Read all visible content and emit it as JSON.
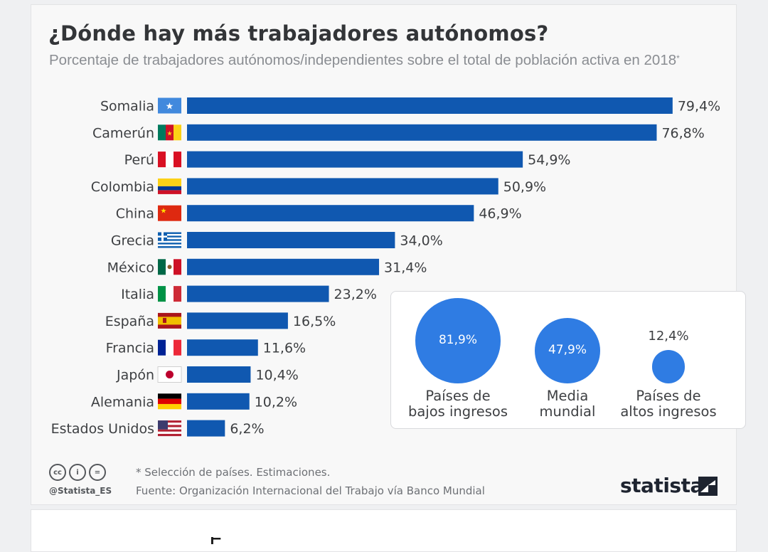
{
  "header": {
    "title": "¿Dónde hay más trabajadores autónomos?",
    "subtitle": "Porcentaje de trabajadores autónomos/independientes sobre el total de población activa en 2018",
    "subtitle_mark": "*"
  },
  "chart_data": {
    "type": "bar",
    "orientation": "horizontal",
    "title": "¿Dónde hay más trabajadores autónomos?",
    "categories": [
      "Somalia",
      "Camerún",
      "Perú",
      "Colombia",
      "China",
      "Grecia",
      "México",
      "Italia",
      "España",
      "Francia",
      "Japón",
      "Alemania",
      "Estados Unidos"
    ],
    "values": [
      79.4,
      76.8,
      54.9,
      50.9,
      46.9,
      34.0,
      31.4,
      23.2,
      16.5,
      11.6,
      10.4,
      10.2,
      6.2
    ],
    "value_labels": [
      "79,4%",
      "76,8%",
      "54,9%",
      "50,9%",
      "46,9%",
      "34,0%",
      "31,4%",
      "23,2%",
      "16,5%",
      "11,6%",
      "10,4%",
      "10,2%",
      "6,2%"
    ],
    "flags": [
      "flag-somalia-icon",
      "flag-cameroon-icon",
      "flag-peru-icon",
      "flag-colombia-icon",
      "flag-china-icon",
      "flag-greece-icon",
      "flag-mexico-icon",
      "flag-italy-icon",
      "flag-spain-icon",
      "flag-france-icon",
      "flag-japan-icon",
      "flag-germany-icon",
      "flag-usa-icon"
    ],
    "xlim": [
      0,
      80
    ],
    "unit": "%",
    "bar_color": "#1058b0"
  },
  "income_groups": {
    "bubble_color": "#2f7ce3",
    "items": [
      {
        "value": 81.9,
        "value_label": "81,9%",
        "caption_line1": "Países de",
        "caption_line2": "bajos ingresos"
      },
      {
        "value": 47.9,
        "value_label": "47,9%",
        "caption_line1": "Media",
        "caption_line2": "mundial"
      },
      {
        "value": 12.4,
        "value_label": "12,4%",
        "caption_line1": "Países de",
        "caption_line2": "altos ingresos"
      }
    ]
  },
  "footer": {
    "license_icons": [
      "cc-icon",
      "by-icon",
      "nd-icon"
    ],
    "license_glyphs": [
      "cc",
      "i",
      "="
    ],
    "handle": "@Statista_ES",
    "note": "* Selección de países. Estimaciones.",
    "source": "Fuente: Organización Internacional del Trabajo vía Banco Mundial",
    "brand": "statista"
  },
  "next_card": {
    "peek_text": "É"
  }
}
